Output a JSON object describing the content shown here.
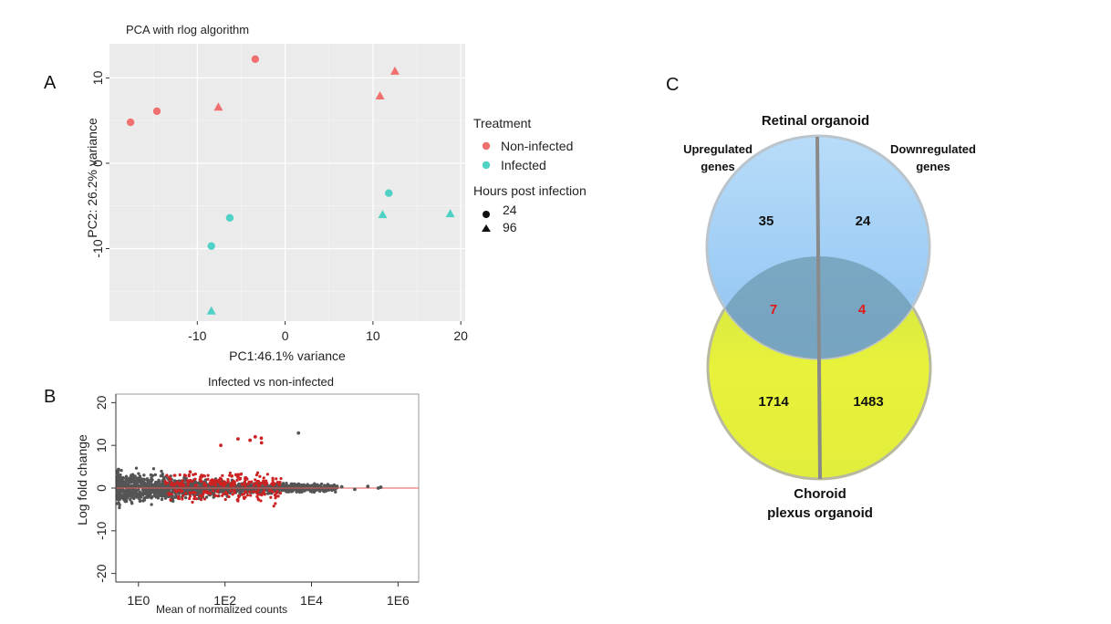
{
  "panels": {
    "a": "A",
    "b": "B",
    "c": "C"
  },
  "chart_data": [
    {
      "type": "scatter",
      "title": "PCA with rlog algorithm",
      "xlabel": "PC1:46.1% variance",
      "ylabel": "PC2: 26.2% variance",
      "xlim": [
        -20,
        20.5
      ],
      "ylim": [
        -18.5,
        14
      ],
      "xticks": [
        -10,
        0,
        10,
        20
      ],
      "yticks": [
        -10,
        0,
        10
      ],
      "grid": true,
      "legend_position": "right",
      "legend": {
        "color_title": "Treatment",
        "color_entries": [
          {
            "label": "Non-infected",
            "color": "#f07070"
          },
          {
            "label": "Infected",
            "color": "#4fd1c5"
          }
        ],
        "shape_title": "Hours post infection",
        "shape_entries": [
          {
            "label": "24",
            "shape": "circle"
          },
          {
            "label": "96",
            "shape": "triangle"
          }
        ]
      },
      "series": [
        {
          "name": "Non-infected",
          "color": "#f07070",
          "points": [
            {
              "x": -17.6,
              "y": 4.8,
              "hours": "24"
            },
            {
              "x": -14.6,
              "y": 6.1,
              "hours": "24"
            },
            {
              "x": -3.4,
              "y": 12.2,
              "hours": "24"
            },
            {
              "x": -7.6,
              "y": 6.6,
              "hours": "96"
            },
            {
              "x": 10.8,
              "y": 7.9,
              "hours": "96"
            },
            {
              "x": 12.5,
              "y": 10.8,
              "hours": "96"
            }
          ]
        },
        {
          "name": "Infected",
          "color": "#4fd1c5",
          "points": [
            {
              "x": -8.4,
              "y": -9.7,
              "hours": "24"
            },
            {
              "x": -6.3,
              "y": -6.4,
              "hours": "24"
            },
            {
              "x": 11.8,
              "y": -3.5,
              "hours": "24"
            },
            {
              "x": -8.4,
              "y": -17.3,
              "hours": "96"
            },
            {
              "x": 11.1,
              "y": -6.0,
              "hours": "96"
            },
            {
              "x": 18.8,
              "y": -5.9,
              "hours": "96"
            }
          ]
        }
      ]
    },
    {
      "type": "scatter",
      "title": "Infected vs non-infected",
      "xlabel": "Mean of normalized counts",
      "ylabel": "Log fold change",
      "x_scale": "log",
      "xlim": [
        0.3,
        3000000
      ],
      "ylim": [
        -22,
        22
      ],
      "xticks": [
        {
          "value": 1,
          "label": "1E0"
        },
        {
          "value": 100,
          "label": "1E2"
        },
        {
          "value": 10000,
          "label": "1E4"
        },
        {
          "value": 1000000,
          "label": "1E6"
        }
      ],
      "yticks": [
        -20,
        -10,
        0,
        10,
        20
      ],
      "hline": 0,
      "colors": {
        "not_significant": "#555555",
        "significant": "#cc2222",
        "hline": "#e85a5a"
      },
      "series": [
        {
          "name": "",
          "color": "#555555",
          "points": [
            [
              400000,
              0.2
            ],
            [
              350000,
              0
            ],
            [
              200000,
              0.4
            ],
            [
              100000,
              -0.3
            ],
            [
              50000,
              0.3
            ],
            [
              5000,
              12.9
            ]
          ]
        },
        {
          "name": "",
          "color": "#cc2222",
          "points": [
            [
              80,
              10
            ],
            [
              200,
              11.5
            ],
            [
              380,
              11.2
            ],
            [
              500,
              12
            ],
            [
              690,
              11.7
            ],
            [
              700,
              10.6
            ],
            [
              80,
              1.3
            ],
            [
              200,
              2.6
            ],
            [
              33,
              -0.8
            ],
            [
              300,
              -0.9
            ],
            [
              1800,
              0.8
            ],
            [
              5,
              -1.3
            ],
            [
              180,
              3.1
            ],
            [
              300,
              2.4
            ]
          ]
        }
      ]
    }
  ],
  "venn": {
    "top_label": "Retinal organoid",
    "left_label_line1": "Upregulated",
    "left_label_line2": "genes",
    "right_label_line1": "Downregulated",
    "right_label_line2": "genes",
    "bottom_label_line1": "Choroid",
    "bottom_label_line2": "plexus organoid",
    "top_left": "35",
    "top_right": "24",
    "overlap_left": "7",
    "overlap_right": "4",
    "bottom_left": "1714",
    "bottom_right": "1483",
    "colors": {
      "top": "#9ccdf5",
      "bottom": "#e3ef3a",
      "overlap_number": "#e01b1b"
    }
  }
}
